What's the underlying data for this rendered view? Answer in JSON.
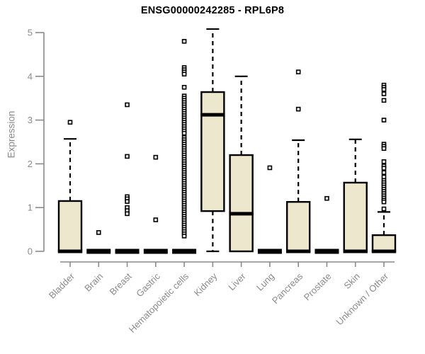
{
  "chart_data": {
    "type": "boxplot",
    "title": "ENSG00000242285 - RPL6P8",
    "ylabel": "Expression",
    "xlabel": "",
    "ylim": [
      0,
      5.1
    ],
    "yticks": [
      0,
      1,
      2,
      3,
      4,
      5
    ],
    "grid": false,
    "legend": "none",
    "colors": {
      "box_fill": "#ede7ce",
      "box_stroke": "#000000",
      "median": "#000000",
      "whisker": "#000000",
      "outlier_stroke": "#000000",
      "outlier_fill": "#ffffff",
      "axis": "#8a8a8a",
      "tick_label": "#8a8a8a",
      "title": "#000000",
      "background": "#ffffff"
    },
    "categories": [
      "Bladder",
      "Brain",
      "Breast",
      "Gastric",
      "Hematopoietic cells",
      "Kidney",
      "Liver",
      "Lung",
      "Pancreas",
      "Prostate",
      "Skin",
      "Unknown / Other"
    ],
    "boxes": [
      {
        "low": 0,
        "q1": 0,
        "median": 0,
        "q3": 1.15,
        "high": 2.57,
        "outliers": [
          2.95
        ]
      },
      {
        "low": 0,
        "q1": 0,
        "median": 0,
        "q3": 0,
        "high": 0,
        "outliers": [
          0.43
        ]
      },
      {
        "low": 0,
        "q1": 0,
        "median": 0,
        "q3": 0,
        "high": 0,
        "outliers": [
          3.35,
          2.17,
          1.25,
          1.2,
          1.14,
          1.0,
          0.93,
          0.86
        ]
      },
      {
        "low": 0,
        "q1": 0,
        "median": 0,
        "q3": 0,
        "high": 0,
        "outliers": [
          2.15,
          0.72
        ]
      },
      {
        "low": 0,
        "q1": 0,
        "median": 0,
        "q3": 0,
        "high": 0,
        "outliers": [
          4.8,
          4.2,
          4.15,
          4.1,
          4.05,
          3.75,
          3.55,
          3.5,
          3.45,
          3.4,
          3.35,
          3.3,
          3.25,
          3.2,
          3.15,
          3.1,
          3.05,
          3.0,
          2.95,
          2.9,
          2.85,
          2.8,
          2.75,
          2.7,
          2.6,
          2.55,
          2.5,
          2.45,
          2.4,
          2.35,
          2.3,
          2.25,
          2.2,
          2.15,
          2.1,
          2.05,
          2.0,
          1.95,
          1.9,
          1.85,
          1.8,
          1.75,
          1.7,
          1.65,
          1.6,
          1.55,
          1.5,
          1.45,
          1.4,
          1.35,
          1.3,
          1.25,
          1.2,
          1.15,
          1.1,
          1.05,
          1.0,
          0.95,
          0.9,
          0.85,
          0.8,
          0.75,
          0.7,
          0.65,
          0.6,
          0.55,
          0.5,
          0.45,
          0.4,
          0.35
        ]
      },
      {
        "low": 0,
        "q1": 0.92,
        "median": 3.12,
        "q3": 3.64,
        "high": 5.08,
        "outliers": []
      },
      {
        "low": 0,
        "q1": 0,
        "median": 0.86,
        "q3": 2.2,
        "high": 4.0,
        "outliers": []
      },
      {
        "low": 0,
        "q1": 0,
        "median": 0,
        "q3": 0,
        "high": 0,
        "outliers": [
          1.91
        ]
      },
      {
        "low": 0,
        "q1": 0,
        "median": 0,
        "q3": 1.13,
        "high": 2.54,
        "outliers": [
          4.1,
          3.25
        ]
      },
      {
        "low": 0,
        "q1": 0,
        "median": 0,
        "q3": 0,
        "high": 0,
        "outliers": [
          1.21
        ]
      },
      {
        "low": 0,
        "q1": 0,
        "median": 0,
        "q3": 1.57,
        "high": 2.56,
        "outliers": []
      },
      {
        "low": 0,
        "q1": 0,
        "median": 0,
        "q3": 0.37,
        "high": 0.9,
        "outliers": [
          3.8,
          3.75,
          3.7,
          3.6,
          3.45,
          3.0,
          2.45,
          2.4,
          2.35,
          2.05,
          1.95,
          1.9,
          1.8,
          1.7,
          1.62,
          1.57,
          1.52,
          1.47,
          1.42,
          1.37,
          1.32,
          1.27,
          1.22,
          1.17,
          1.13,
          0.97
        ]
      }
    ]
  }
}
